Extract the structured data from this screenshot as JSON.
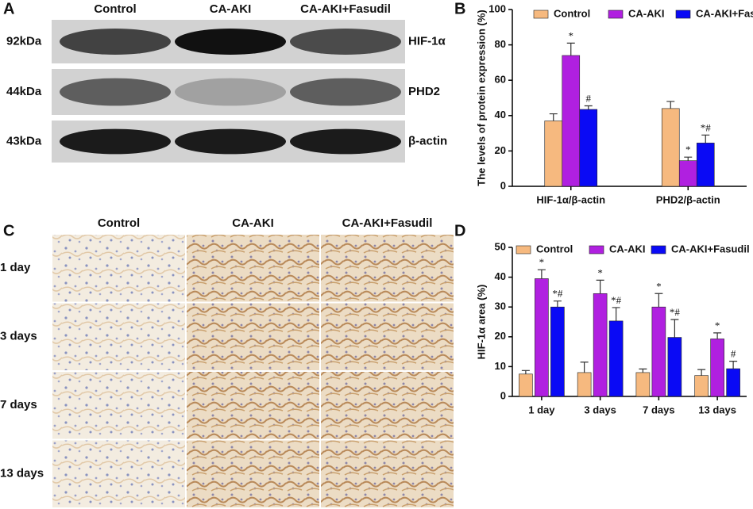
{
  "panel_labels": [
    "A",
    "B",
    "C",
    "D"
  ],
  "blot": {
    "columns": [
      "Control",
      "CA-AKI",
      "CA-AKI+Fasudil"
    ],
    "rows": [
      {
        "size": "92kDa",
        "protein": "HIF-1α"
      },
      {
        "size": "44kDa",
        "protein": "PHD2"
      },
      {
        "size": "43kDa",
        "protein": "β-actin"
      }
    ]
  },
  "ihc": {
    "columns": [
      "Control",
      "CA-AKI",
      "CA-AKI+Fasudil"
    ],
    "rows": [
      "1 day",
      "3 days",
      "7 days",
      "13 days"
    ]
  },
  "chart_data": [
    {
      "type": "bar",
      "y_label": "The levels of protein expression (%)",
      "categories": [
        "HIF-1α/β-actin",
        "PHD2/β-actin"
      ],
      "series": [
        {
          "name": "Control",
          "color": "#f6b97f",
          "values": [
            37,
            44
          ],
          "errors": [
            4,
            4
          ],
          "labels": [
            null,
            null
          ]
        },
        {
          "name": "CA-AKI",
          "color": "#b020e0",
          "values": [
            74,
            14.5
          ],
          "errors": [
            7,
            2
          ],
          "labels": [
            "*",
            "*"
          ]
        },
        {
          "name": "CA-AKI+Fasudil",
          "color": "#0a0af5",
          "values": [
            43.5,
            24.5
          ],
          "errors": [
            2,
            4.5
          ],
          "labels": [
            "#",
            "*#"
          ]
        }
      ],
      "ylim": [
        0,
        100
      ],
      "yticks": [
        0,
        20,
        40,
        60,
        80,
        100
      ],
      "legend": "top"
    },
    {
      "type": "bar",
      "y_label": "HIF-1α area (%)",
      "categories": [
        "1 day",
        "3 days",
        "7 days",
        "13 days"
      ],
      "series": [
        {
          "name": "Control",
          "color": "#f6b97f",
          "values": [
            7.5,
            8,
            8,
            7
          ],
          "errors": [
            1.2,
            3.5,
            1.2,
            2
          ],
          "labels": [
            null,
            null,
            null,
            null
          ]
        },
        {
          "name": "CA-AKI",
          "color": "#b020e0",
          "values": [
            39.5,
            34.5,
            30,
            19.3
          ],
          "errors": [
            3,
            4.5,
            4.5,
            2
          ],
          "labels": [
            "*",
            "*",
            "*",
            "*"
          ]
        },
        {
          "name": "CA-AKI+Fasudil",
          "color": "#0a0af5",
          "values": [
            30,
            25.3,
            19.8,
            9.3
          ],
          "errors": [
            2,
            4.5,
            6,
            2.5
          ],
          "labels": [
            "*#",
            "*#",
            "*#",
            "#"
          ]
        }
      ],
      "ylim": [
        0,
        50
      ],
      "yticks": [
        0,
        10,
        20,
        30,
        40,
        50
      ],
      "legend": "top"
    }
  ]
}
